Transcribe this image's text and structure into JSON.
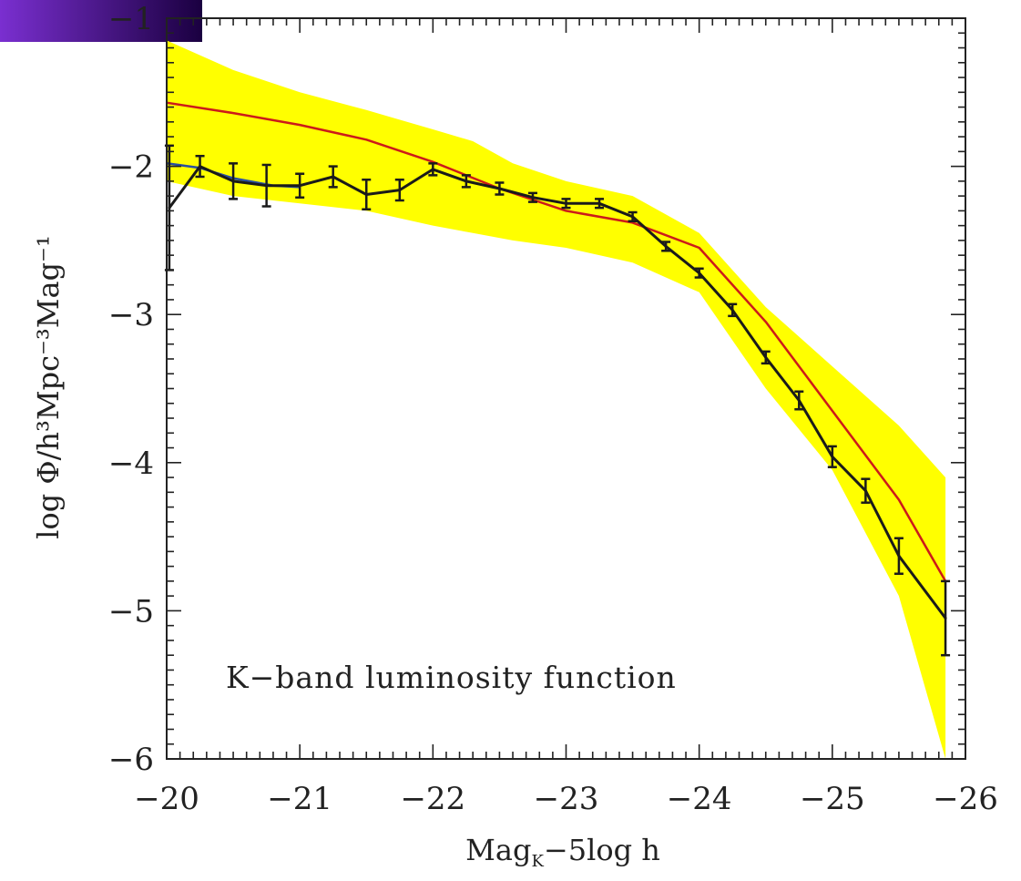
{
  "chart_data": {
    "type": "line",
    "xlabel": "Mag",
    "xlabel_subscript": "K",
    "xlabel_suffix": "−5log h",
    "ylabel": "log Φ/h³Mpc⁻³Mag⁻¹",
    "annotation": "K−band luminosity function",
    "xlim": [
      -20,
      -26
    ],
    "ylim": [
      -6,
      -1
    ],
    "x_ticks": [
      -20,
      -21,
      -22,
      -23,
      -24,
      -25,
      -26
    ],
    "x_tick_labels": [
      "−20",
      "−21",
      "−22",
      "−23",
      "−24",
      "−25",
      "−26"
    ],
    "y_ticks": [
      -1,
      -2,
      -3,
      -4,
      -5,
      -6
    ],
    "y_tick_labels": [
      "−1",
      "−2",
      "−3",
      "−4",
      "−5",
      "−6"
    ],
    "grid": false,
    "band": {
      "color": "#ffff00",
      "x": [
        -20.0,
        -20.5,
        -21.0,
        -21.5,
        -22.0,
        -22.3,
        -22.6,
        -23.0,
        -23.5,
        -24.0,
        -24.5,
        -25.0,
        -25.5,
        -25.85
      ],
      "upper": [
        -1.15,
        -1.35,
        -1.5,
        -1.62,
        -1.75,
        -1.83,
        -1.98,
        -2.1,
        -2.2,
        -2.45,
        -2.95,
        -3.35,
        -3.75,
        -4.1
      ],
      "lower": [
        -2.1,
        -2.2,
        -2.25,
        -2.3,
        -2.4,
        -2.45,
        -2.5,
        -2.55,
        -2.65,
        -2.85,
        -3.5,
        -4.05,
        -4.9,
        -6.0
      ]
    },
    "series": [
      {
        "color": "#cc1a1a",
        "x": [
          -20.0,
          -20.5,
          -21.0,
          -21.5,
          -22.0,
          -22.5,
          -23.0,
          -23.5,
          -24.0,
          -24.5,
          -25.0,
          -25.5,
          -25.85
        ],
        "values": [
          -1.57,
          -1.64,
          -1.72,
          -1.82,
          -1.97,
          -2.15,
          -2.3,
          -2.38,
          -2.55,
          -3.05,
          -3.65,
          -4.25,
          -4.8
        ]
      },
      {
        "color": "#2a4fa0",
        "x": [
          -20.0,
          -20.25,
          -20.5,
          -20.8,
          -21.0
        ],
        "values": [
          -1.98,
          -2.01,
          -2.08,
          -2.13,
          -2.14
        ]
      },
      {
        "color": "#1a1a1a",
        "x": [
          -20.02,
          -20.25,
          -20.5,
          -20.75,
          -21.0,
          -21.25,
          -21.5,
          -21.75,
          -22.0,
          -22.25,
          -22.5,
          -22.75,
          -23.0,
          -23.25,
          -23.5,
          -23.75,
          -24.0,
          -24.25,
          -24.5,
          -24.75,
          -25.0,
          -25.25,
          -25.5,
          -25.85
        ],
        "values": [
          -2.28,
          -2.0,
          -2.1,
          -2.13,
          -2.13,
          -2.07,
          -2.19,
          -2.16,
          -2.02,
          -2.1,
          -2.15,
          -2.21,
          -2.25,
          -2.25,
          -2.34,
          -2.54,
          -2.72,
          -2.97,
          -3.29,
          -3.58,
          -3.96,
          -4.19,
          -4.63,
          -5.05
        ],
        "err": [
          0.42,
          0.07,
          0.12,
          0.14,
          0.08,
          0.07,
          0.1,
          0.07,
          0.04,
          0.04,
          0.04,
          0.03,
          0.03,
          0.03,
          0.03,
          0.03,
          0.03,
          0.04,
          0.04,
          0.06,
          0.07,
          0.08,
          0.12,
          0.25
        ]
      }
    ]
  },
  "corner_accent": "#5a1fb0"
}
